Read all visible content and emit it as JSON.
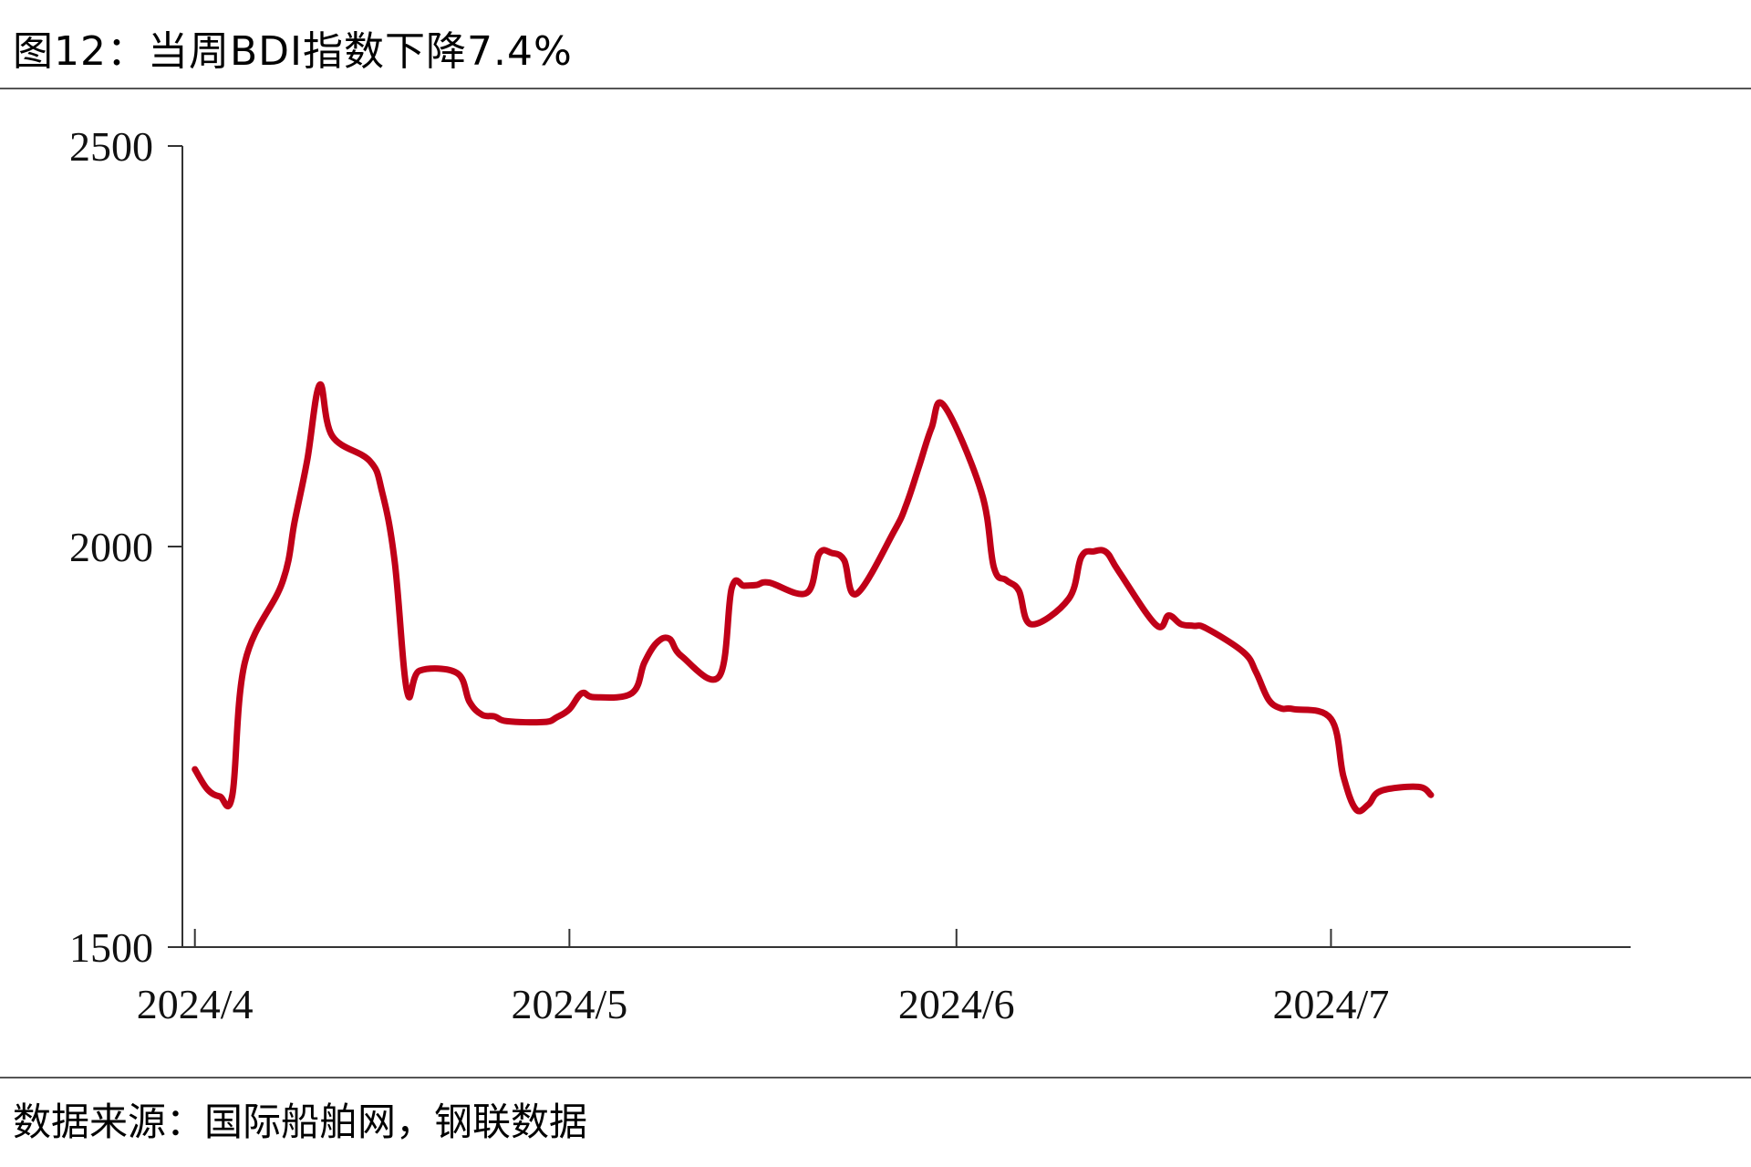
{
  "header": {
    "title": "图12：当周BDI指数下降7.4%"
  },
  "footer": {
    "source": "数据来源：国际船舶网，钢联数据"
  },
  "colors": {
    "line": "#c00018",
    "axis": "#333333"
  },
  "chart_data": {
    "type": "line",
    "title": "",
    "xlabel": "",
    "ylabel": "",
    "ylim": [
      1500,
      2500
    ],
    "yticks": [
      "1500",
      "2000",
      "2500"
    ],
    "xticks": [
      {
        "label": "2024/4",
        "date": "2024-04-01"
      },
      {
        "label": "2024/5",
        "date": "2024-05-01"
      },
      {
        "label": "2024/6",
        "date": "2024-06-01"
      },
      {
        "label": "2024/7",
        "date": "2024-07-01"
      }
    ],
    "grid": false,
    "legend": "none",
    "series": [
      {
        "name": "",
        "x": [
          "2024-04-01",
          "2024-04-02",
          "2024-04-03",
          "2024-04-04",
          "2024-04-05",
          "2024-04-08",
          "2024-04-09",
          "2024-04-10",
          "2024-04-11",
          "2024-04-12",
          "2024-04-15",
          "2024-04-16",
          "2024-04-17",
          "2024-04-18",
          "2024-04-19",
          "2024-04-22",
          "2024-04-23",
          "2024-04-24",
          "2024-04-25",
          "2024-04-26",
          "2024-04-29",
          "2024-04-30",
          "2024-05-01",
          "2024-05-02",
          "2024-05-03",
          "2024-05-06",
          "2024-05-07",
          "2024-05-08",
          "2024-05-09",
          "2024-05-10",
          "2024-05-13",
          "2024-05-14",
          "2024-05-15",
          "2024-05-16",
          "2024-05-17",
          "2024-05-20",
          "2024-05-21",
          "2024-05-22",
          "2024-05-23",
          "2024-05-24",
          "2024-05-27",
          "2024-05-28",
          "2024-05-29",
          "2024-05-30",
          "2024-05-31",
          "2024-06-03",
          "2024-06-04",
          "2024-06-05",
          "2024-06-06",
          "2024-06-07",
          "2024-06-10",
          "2024-06-11",
          "2024-06-12",
          "2024-06-13",
          "2024-06-14",
          "2024-06-17",
          "2024-06-18",
          "2024-06-19",
          "2024-06-20",
          "2024-06-21",
          "2024-06-24",
          "2024-06-25",
          "2024-06-26",
          "2024-06-27",
          "2024-06-28",
          "2024-07-01",
          "2024-07-02",
          "2024-07-03",
          "2024-07-04",
          "2024-07-05",
          "2024-07-08",
          "2024-07-09"
        ],
        "values": [
          1722,
          1697,
          1688,
          1690,
          1855,
          1955,
          2032,
          2108,
          2202,
          2138,
          2107,
          2068,
          1982,
          1819,
          1845,
          1842,
          1806,
          1790,
          1788,
          1782,
          1781,
          1787,
          1797,
          1817,
          1812,
          1817,
          1855,
          1880,
          1885,
          1863,
          1838,
          1948,
          1951,
          1952,
          1955,
          1942,
          1991,
          1992,
          1983,
          1941,
          2019,
          2053,
          2100,
          2148,
          2176,
          2068,
          1974,
          1958,
          1945,
          1903,
          1935,
          1987,
          1994,
          1993,
          1969,
          1902,
          1914,
          1903,
          1901,
          1898,
          1868,
          1843,
          1809,
          1798,
          1797,
          1785,
          1713,
          1672,
          1678,
          1695,
          1700,
          1690
        ]
      }
    ]
  }
}
